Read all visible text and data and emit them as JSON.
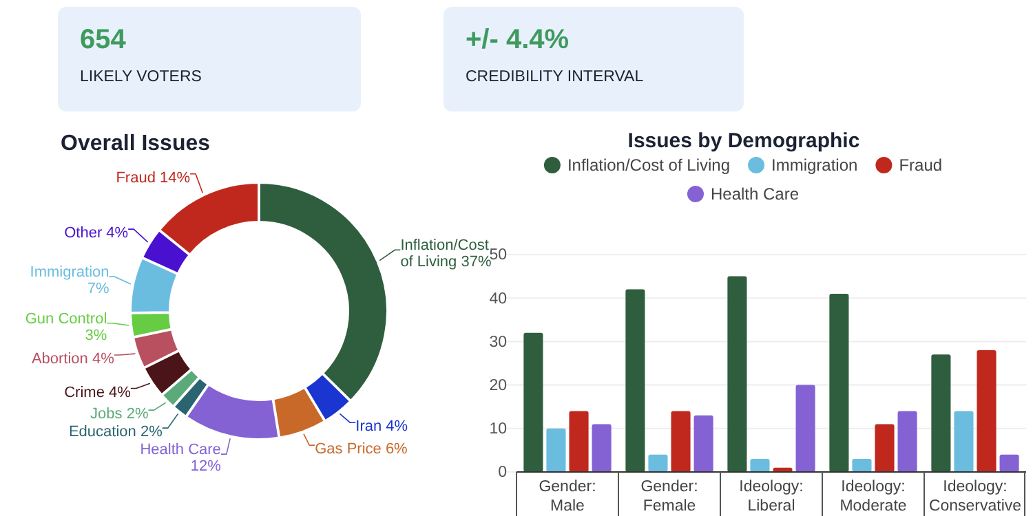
{
  "chart_data": [
    {
      "type": "other",
      "title": "654",
      "subtitle": "LIKELY VOTERS"
    },
    {
      "type": "other",
      "title": "+/- 4.4%",
      "subtitle": "CREDIBILITY INTERVAL"
    },
    {
      "type": "donut",
      "title": "Overall Issues",
      "categories": [
        "Inflation/Cost of Living",
        "Iran",
        "Gas Price",
        "Health Care",
        "Education",
        "Jobs",
        "Crime",
        "Abortion",
        "Gun Control",
        "Immigration",
        "Other",
        "Fraud"
      ],
      "values": [
        37,
        4,
        6,
        12,
        2,
        2,
        4,
        4,
        3,
        7,
        4,
        14
      ],
      "value_labels": [
        "37%",
        "4%",
        "6%",
        "12%",
        "2%",
        "2%",
        "4%",
        "4%",
        "3%",
        "7%",
        "4%",
        "14%"
      ],
      "colors": [
        "#2e5e3e",
        "#1a35d0",
        "#c8692a",
        "#8462d4",
        "#2a6470",
        "#5aaa7a",
        "#4a1418",
        "#b85060",
        "#66cc44",
        "#6bbde0",
        "#4a10d0",
        "#c0281e"
      ]
    },
    {
      "type": "bar",
      "title": "Issues by Demographic",
      "categories": [
        "Gender: Male",
        "Gender: Female",
        "Ideology: Liberal",
        "Ideology: Moderate",
        "Ideology: Conservative"
      ],
      "series": [
        {
          "name": "Inflation/Cost of Living",
          "color": "#2e5e3e",
          "values": [
            32,
            42,
            45,
            41,
            27
          ]
        },
        {
          "name": "Immigration",
          "color": "#6bbde0",
          "values": [
            10,
            4,
            3,
            3,
            14
          ]
        },
        {
          "name": "Fraud",
          "color": "#c0281e",
          "values": [
            14,
            14,
            1,
            11,
            28
          ]
        },
        {
          "name": "Health Care",
          "color": "#8462d4",
          "values": [
            11,
            13,
            20,
            14,
            4
          ]
        }
      ],
      "ylim": [
        0,
        50
      ],
      "yticks": [
        0,
        10,
        20,
        30,
        40,
        50
      ],
      "grid": "y",
      "legend": "top"
    }
  ]
}
